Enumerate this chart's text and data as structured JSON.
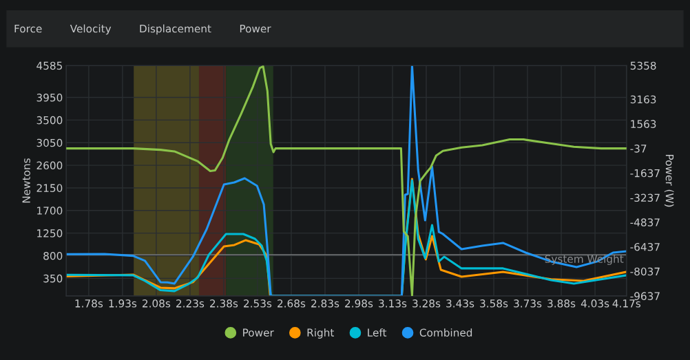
{
  "chart_data": {
    "type": "line",
    "ylabel": "Newtons",
    "y2label": "Power (W)",
    "annotations": [
      "Force",
      "Velocity",
      "Displacement",
      "Power"
    ],
    "xlim": [
      1.68,
      4.17
    ],
    "xticks": [
      {
        "value": 1.78,
        "label": "1.78s"
      },
      {
        "value": 1.93,
        "label": "1.93s"
      },
      {
        "value": 2.08,
        "label": "2.08s"
      },
      {
        "value": 2.23,
        "label": "2.23s"
      },
      {
        "value": 2.38,
        "label": "2.38s"
      },
      {
        "value": 2.53,
        "label": "2.53s"
      },
      {
        "value": 2.68,
        "label": "2.68s"
      },
      {
        "value": 2.83,
        "label": "2.83s"
      },
      {
        "value": 2.98,
        "label": "2.98s"
      },
      {
        "value": 3.13,
        "label": "3.13s"
      },
      {
        "value": 3.28,
        "label": "3.28s"
      },
      {
        "value": 3.43,
        "label": "3.43s"
      },
      {
        "value": 3.58,
        "label": "3.58s"
      },
      {
        "value": 3.73,
        "label": "3.73s"
      },
      {
        "value": 3.88,
        "label": "3.88s"
      },
      {
        "value": 4.03,
        "label": "4.03s"
      },
      {
        "value": 4.17,
        "label": "4.17s"
      }
    ],
    "ylim": [
      0,
      4585
    ],
    "yticks": [
      350,
      800,
      1250,
      1700,
      2150,
      2600,
      3050,
      3500,
      3950,
      4585
    ],
    "y2lim": [
      -9637,
      5358
    ],
    "y2ticks": [
      -9637,
      -8037,
      -6437,
      -4837,
      -3237,
      -1637,
      -37,
      1563,
      3163,
      5358
    ],
    "grid": true,
    "legend": "bottom",
    "marker": "none",
    "line_style": "solid",
    "bands": [
      {
        "axis": "x",
        "from": 1.98,
        "to": 2.27,
        "color": "#46421f"
      },
      {
        "axis": "x",
        "from": 2.27,
        "to": 2.39,
        "color": "#4a2620"
      },
      {
        "axis": "x",
        "from": 2.39,
        "to": 2.6,
        "color": "#22361f"
      }
    ],
    "ref_lines": [
      {
        "axis": "y",
        "value": 820,
        "label": "System Weight",
        "color": "#6b6e70"
      }
    ],
    "series": [
      {
        "name": "Power",
        "color": "#8bc34a",
        "axis": "y2",
        "x": [
          1.68,
          1.977,
          2.099,
          2.161,
          2.265,
          2.32,
          2.341,
          2.375,
          2.405,
          2.457,
          2.51,
          2.54,
          2.555,
          2.574,
          2.589,
          2.601,
          2.61,
          3.168,
          3.18,
          3.198,
          3.217,
          3.232,
          3.253,
          3.284,
          3.299,
          3.324,
          3.354,
          3.437,
          3.529,
          3.651,
          3.712,
          3.835,
          3.936,
          4.058,
          4.17
        ],
        "values": [
          -37,
          -37,
          -127,
          -230,
          -880,
          -1510,
          -1470,
          -650,
          548,
          2200,
          3999,
          5196,
          5300,
          3698,
          246,
          -276,
          -37,
          -37,
          -5436,
          -5752,
          -9600,
          -4536,
          -2152,
          -1554,
          -1300,
          -502,
          -202,
          22,
          173,
          548,
          548,
          278,
          68,
          -37,
          -37
        ]
      },
      {
        "name": "Right",
        "color": "#ff9800",
        "axis": "y",
        "x": [
          1.68,
          1.977,
          2.099,
          2.161,
          2.243,
          2.265,
          2.381,
          2.427,
          2.478,
          2.537,
          2.571,
          2.586,
          3.171,
          3.189,
          3.217,
          3.244,
          3.278,
          3.306,
          3.345,
          3.437,
          3.621,
          3.835,
          3.979,
          4.17
        ],
        "values": [
          388,
          424,
          164,
          151,
          274,
          383,
          986,
          1013,
          1109,
          1027,
          800,
          0,
          0,
          1136,
          2327,
          1232,
          726,
          1191,
          520,
          383,
          479,
          330,
          301,
          479
        ]
      },
      {
        "name": "Left",
        "color": "#00bcd4",
        "axis": "y",
        "x": [
          1.68,
          1.977,
          2.029,
          2.099,
          2.161,
          2.222,
          2.265,
          2.314,
          2.39,
          2.467,
          2.519,
          2.549,
          2.571,
          2.589,
          3.171,
          3.186,
          3.217,
          3.244,
          3.275,
          3.306,
          3.336,
          3.36,
          3.437,
          3.621,
          3.835,
          3.936,
          4.17
        ],
        "values": [
          420,
          411,
          301,
          114,
          96,
          233,
          370,
          821,
          1232,
          1232,
          1136,
          999,
          700,
          0,
          0,
          958,
          2300,
          1136,
          753,
          1410,
          685,
          780,
          548,
          548,
          315,
          246,
          411
        ]
      },
      {
        "name": "Combined",
        "color": "#2196f3",
        "axis": "y",
        "x": [
          1.68,
          1.85,
          1.977,
          2.03,
          2.099,
          2.13,
          2.161,
          2.243,
          2.304,
          2.381,
          2.427,
          2.473,
          2.528,
          2.558,
          2.575,
          2.589,
          3.171,
          3.186,
          3.198,
          3.217,
          3.244,
          3.275,
          3.306,
          3.336,
          3.354,
          3.437,
          3.529,
          3.621,
          3.722,
          3.835,
          3.948,
          4.04,
          4.11,
          4.17
        ],
        "values": [
          831,
          835,
          798,
          700,
          274,
          270,
          246,
          780,
          1328,
          2218,
          2259,
          2341,
          2190,
          1821,
          900,
          0,
          0,
          2012,
          2030,
          4585,
          2505,
          1506,
          2574,
          1273,
          1232,
          931,
          999,
          1054,
          862,
          685,
          575,
          685,
          862,
          890
        ]
      }
    ]
  }
}
